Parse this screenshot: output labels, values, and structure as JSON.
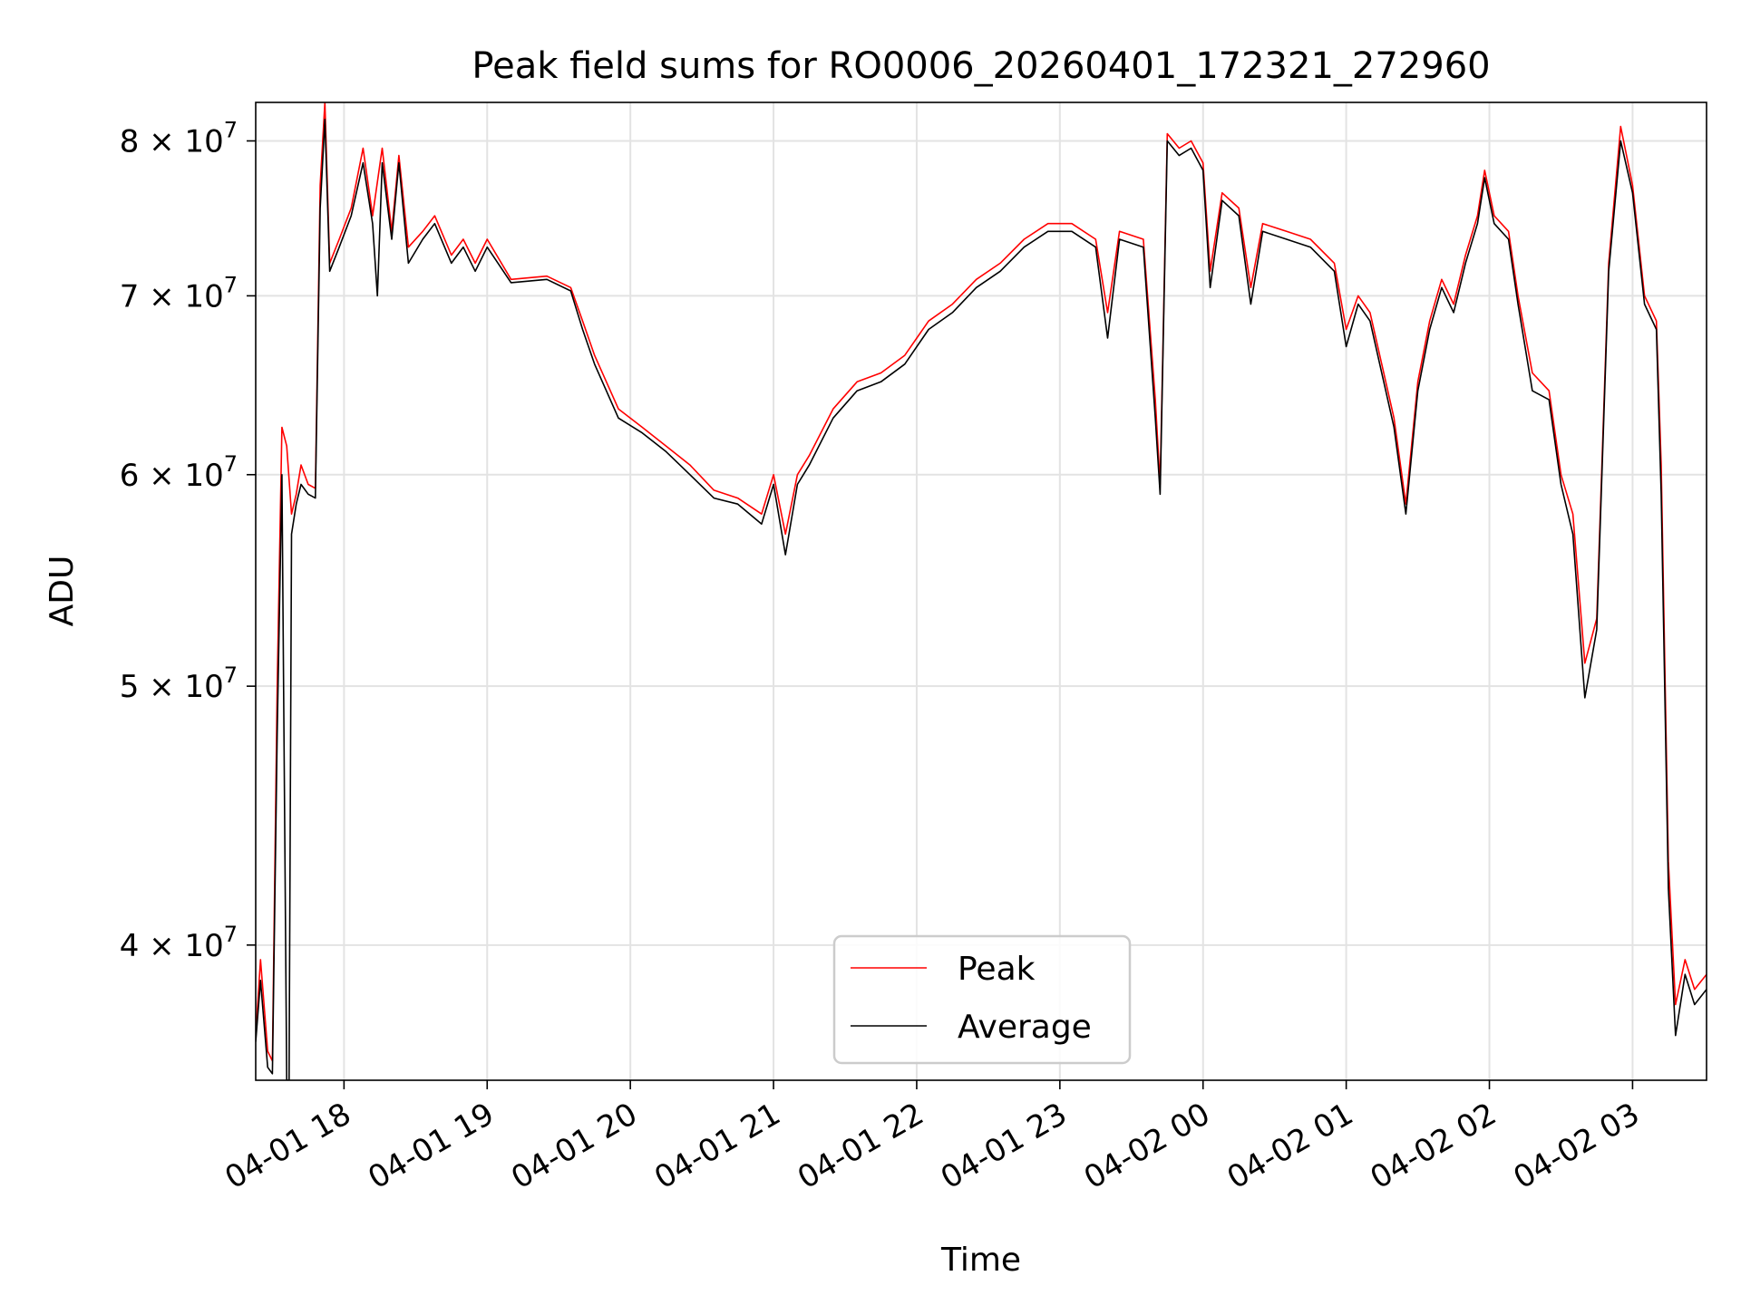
{
  "chart_data": {
    "type": "line",
    "title": "Peak field sums for RO0006_20260401_172321_272960",
    "xlabel": "Time",
    "ylabel": "ADU",
    "x_ticks": [
      "04-01 18",
      "04-01 19",
      "04-01 20",
      "04-01 21",
      "04-01 22",
      "04-01 23",
      "04-02 00",
      "04-02 01",
      "04-02 02",
      "04-02 03"
    ],
    "y_ticks": [
      {
        "value": 40000000,
        "mantissa": "4",
        "exp": "7"
      },
      {
        "value": 50000000,
        "mantissa": "5",
        "exp": "7"
      },
      {
        "value": 60000000,
        "mantissa": "6",
        "exp": "7"
      },
      {
        "value": 70000000,
        "mantissa": "7",
        "exp": "7"
      },
      {
        "value": 80000000,
        "mantissa": "8",
        "exp": "7"
      }
    ],
    "y_scale": "log",
    "xlim": [
      "04-01 17:23",
      "04-02 03:31"
    ],
    "ylim": [
      35600000,
      82700000
    ],
    "grid": true,
    "legend_position": "lower-center",
    "series": [
      {
        "name": "Peak",
        "color": "#ff0000",
        "points": [
          [
            "04-01 17:23",
            37000000
          ],
          [
            "04-01 17:25",
            39500000
          ],
          [
            "04-01 17:28",
            36500000
          ],
          [
            "04-01 17:30",
            36200000
          ],
          [
            "04-01 17:32",
            50000000
          ],
          [
            "04-01 17:34",
            62500000
          ],
          [
            "04-01 17:36",
            61500000
          ],
          [
            "04-01 17:38",
            58000000
          ],
          [
            "04-01 17:40",
            59000000
          ],
          [
            "04-01 17:42",
            60500000
          ],
          [
            "04-01 17:45",
            59500000
          ],
          [
            "04-01 17:48",
            59300000
          ],
          [
            "04-01 17:50",
            77000000
          ],
          [
            "04-01 17:52",
            82700000
          ],
          [
            "04-01 17:54",
            72000000
          ],
          [
            "04-01 17:58",
            73500000
          ],
          [
            "04-01 18:03",
            75500000
          ],
          [
            "04-01 18:08",
            79500000
          ],
          [
            "04-01 18:12",
            75000000
          ],
          [
            "04-01 18:16",
            79500000
          ],
          [
            "04-01 18:20",
            74000000
          ],
          [
            "04-01 18:23",
            79000000
          ],
          [
            "04-01 18:27",
            73000000
          ],
          [
            "04-01 18:33",
            74000000
          ],
          [
            "04-01 18:38",
            75000000
          ],
          [
            "04-01 18:45",
            72500000
          ],
          [
            "04-01 18:50",
            73500000
          ],
          [
            "04-01 18:55",
            72000000
          ],
          [
            "04-01 19:00",
            73500000
          ],
          [
            "04-01 19:10",
            71000000
          ],
          [
            "04-01 19:25",
            71200000
          ],
          [
            "04-01 19:35",
            70500000
          ],
          [
            "04-01 19:40",
            68500000
          ],
          [
            "04-01 19:45",
            66500000
          ],
          [
            "04-01 19:55",
            63500000
          ],
          [
            "04-01 20:05",
            62500000
          ],
          [
            "04-01 20:15",
            61500000
          ],
          [
            "04-01 20:25",
            60500000
          ],
          [
            "04-01 20:35",
            59200000
          ],
          [
            "04-01 20:45",
            58800000
          ],
          [
            "04-01 20:55",
            58000000
          ],
          [
            "04-01 21:00",
            60000000
          ],
          [
            "04-01 21:05",
            57000000
          ],
          [
            "04-01 21:10",
            60000000
          ],
          [
            "04-01 21:15",
            61000000
          ],
          [
            "04-01 21:25",
            63500000
          ],
          [
            "04-01 21:35",
            65000000
          ],
          [
            "04-01 21:45",
            65500000
          ],
          [
            "04-01 21:55",
            66500000
          ],
          [
            "04-01 22:05",
            68500000
          ],
          [
            "04-01 22:15",
            69500000
          ],
          [
            "04-01 22:25",
            71000000
          ],
          [
            "04-01 22:35",
            72000000
          ],
          [
            "04-01 22:45",
            73500000
          ],
          [
            "04-01 22:55",
            74500000
          ],
          [
            "04-01 23:05",
            74500000
          ],
          [
            "04-01 23:15",
            73500000
          ],
          [
            "04-01 23:20",
            69000000
          ],
          [
            "04-01 23:25",
            74000000
          ],
          [
            "04-01 23:35",
            73500000
          ],
          [
            "04-01 23:40",
            64000000
          ],
          [
            "04-01 23:42",
            59500000
          ],
          [
            "04-01 23:45",
            80500000
          ],
          [
            "04-01 23:50",
            79500000
          ],
          [
            "04-01 23:55",
            80000000
          ],
          [
            "04-02 00:00",
            78500000
          ],
          [
            "04-02 00:03",
            71500000
          ],
          [
            "04-02 00:08",
            76500000
          ],
          [
            "04-02 00:15",
            75500000
          ],
          [
            "04-02 00:20",
            70500000
          ],
          [
            "04-02 00:25",
            74500000
          ],
          [
            "04-02 00:35",
            74000000
          ],
          [
            "04-02 00:45",
            73500000
          ],
          [
            "04-02 00:55",
            72000000
          ],
          [
            "04-02 01:00",
            68000000
          ],
          [
            "04-02 01:05",
            70000000
          ],
          [
            "04-02 01:10",
            69000000
          ],
          [
            "04-02 01:20",
            63000000
          ],
          [
            "04-02 01:25",
            58500000
          ],
          [
            "04-02 01:30",
            65000000
          ],
          [
            "04-02 01:35",
            68500000
          ],
          [
            "04-02 01:40",
            71000000
          ],
          [
            "04-02 01:45",
            69500000
          ],
          [
            "04-02 01:50",
            72500000
          ],
          [
            "04-02 01:55",
            75000000
          ],
          [
            "04-02 01:58",
            78000000
          ],
          [
            "04-02 02:02",
            75000000
          ],
          [
            "04-02 02:08",
            74000000
          ],
          [
            "04-02 02:12",
            70000000
          ],
          [
            "04-02 02:18",
            65500000
          ],
          [
            "04-02 02:25",
            64500000
          ],
          [
            "04-02 02:30",
            60000000
          ],
          [
            "04-02 02:35",
            58000000
          ],
          [
            "04-02 02:40",
            51000000
          ],
          [
            "04-02 02:45",
            53000000
          ],
          [
            "04-02 02:50",
            72000000
          ],
          [
            "04-02 02:55",
            81000000
          ],
          [
            "04-02 03:00",
            77000000
          ],
          [
            "04-02 03:05",
            70000000
          ],
          [
            "04-02 03:10",
            68500000
          ],
          [
            "04-02 03:12",
            60500000
          ],
          [
            "04-02 03:15",
            43000000
          ],
          [
            "04-02 03:18",
            38000000
          ],
          [
            "04-02 03:22",
            39500000
          ],
          [
            "04-02 03:26",
            38500000
          ],
          [
            "04-02 03:31",
            39000000
          ]
        ]
      },
      {
        "name": "Average",
        "color": "#000000",
        "points": [
          [
            "04-01 17:23",
            36800000
          ],
          [
            "04-01 17:25",
            38800000
          ],
          [
            "04-01 17:28",
            36000000
          ],
          [
            "04-01 17:30",
            35800000
          ],
          [
            "04-01 17:32",
            48000000
          ],
          [
            "04-01 17:34",
            60000000
          ],
          [
            "04-01 17:36",
            35600000
          ],
          [
            "04-01 17:37",
            35600000
          ],
          [
            "04-01 17:38",
            57000000
          ],
          [
            "04-01 17:40",
            58500000
          ],
          [
            "04-01 17:42",
            59500000
          ],
          [
            "04-01 17:45",
            59000000
          ],
          [
            "04-01 17:48",
            58800000
          ],
          [
            "04-01 17:50",
            75500000
          ],
          [
            "04-01 17:52",
            81500000
          ],
          [
            "04-01 17:54",
            71500000
          ],
          [
            "04-01 17:58",
            73000000
          ],
          [
            "04-01 18:03",
            75000000
          ],
          [
            "04-01 18:08",
            78500000
          ],
          [
            "04-01 18:12",
            74500000
          ],
          [
            "04-01 18:14",
            70000000
          ],
          [
            "04-01 18:16",
            78500000
          ],
          [
            "04-01 18:20",
            73500000
          ],
          [
            "04-01 18:23",
            78500000
          ],
          [
            "04-01 18:27",
            72000000
          ],
          [
            "04-01 18:33",
            73500000
          ],
          [
            "04-01 18:38",
            74500000
          ],
          [
            "04-01 18:45",
            72000000
          ],
          [
            "04-01 18:50",
            73000000
          ],
          [
            "04-01 18:55",
            71500000
          ],
          [
            "04-01 19:00",
            73000000
          ],
          [
            "04-01 19:10",
            70800000
          ],
          [
            "04-01 19:25",
            71000000
          ],
          [
            "04-01 19:35",
            70300000
          ],
          [
            "04-01 19:40",
            68000000
          ],
          [
            "04-01 19:45",
            66000000
          ],
          [
            "04-01 19:55",
            63000000
          ],
          [
            "04-01 20:05",
            62200000
          ],
          [
            "04-01 20:15",
            61200000
          ],
          [
            "04-01 20:25",
            60000000
          ],
          [
            "04-01 20:35",
            58800000
          ],
          [
            "04-01 20:45",
            58500000
          ],
          [
            "04-01 20:55",
            57500000
          ],
          [
            "04-01 21:00",
            59500000
          ],
          [
            "04-01 21:05",
            56000000
          ],
          [
            "04-01 21:10",
            59500000
          ],
          [
            "04-01 21:15",
            60500000
          ],
          [
            "04-01 21:25",
            63000000
          ],
          [
            "04-01 21:35",
            64500000
          ],
          [
            "04-01 21:45",
            65000000
          ],
          [
            "04-01 21:55",
            66000000
          ],
          [
            "04-01 22:05",
            68000000
          ],
          [
            "04-01 22:15",
            69000000
          ],
          [
            "04-01 22:25",
            70500000
          ],
          [
            "04-01 22:35",
            71500000
          ],
          [
            "04-01 22:45",
            73000000
          ],
          [
            "04-01 22:55",
            74000000
          ],
          [
            "04-01 23:05",
            74000000
          ],
          [
            "04-01 23:15",
            73000000
          ],
          [
            "04-01 23:20",
            67500000
          ],
          [
            "04-01 23:25",
            73500000
          ],
          [
            "04-01 23:35",
            73000000
          ],
          [
            "04-01 23:40",
            63000000
          ],
          [
            "04-01 23:42",
            59000000
          ],
          [
            "04-01 23:45",
            80000000
          ],
          [
            "04-01 23:50",
            79000000
          ],
          [
            "04-01 23:55",
            79500000
          ],
          [
            "04-02 00:00",
            78000000
          ],
          [
            "04-02 00:03",
            70500000
          ],
          [
            "04-02 00:08",
            76000000
          ],
          [
            "04-02 00:15",
            75000000
          ],
          [
            "04-02 00:20",
            69500000
          ],
          [
            "04-02 00:25",
            74000000
          ],
          [
            "04-02 00:35",
            73500000
          ],
          [
            "04-02 00:45",
            73000000
          ],
          [
            "04-02 00:55",
            71500000
          ],
          [
            "04-02 01:00",
            67000000
          ],
          [
            "04-02 01:05",
            69500000
          ],
          [
            "04-02 01:10",
            68500000
          ],
          [
            "04-02 01:20",
            62500000
          ],
          [
            "04-02 01:25",
            58000000
          ],
          [
            "04-02 01:30",
            64500000
          ],
          [
            "04-02 01:35",
            68000000
          ],
          [
            "04-02 01:40",
            70500000
          ],
          [
            "04-02 01:45",
            69000000
          ],
          [
            "04-02 01:50",
            72000000
          ],
          [
            "04-02 01:55",
            74500000
          ],
          [
            "04-02 01:58",
            77500000
          ],
          [
            "04-02 02:02",
            74500000
          ],
          [
            "04-02 02:08",
            73500000
          ],
          [
            "04-02 02:12",
            69500000
          ],
          [
            "04-02 02:18",
            64500000
          ],
          [
            "04-02 02:25",
            64000000
          ],
          [
            "04-02 02:30",
            59500000
          ],
          [
            "04-02 02:35",
            57000000
          ],
          [
            "04-02 02:40",
            49500000
          ],
          [
            "04-02 02:45",
            52500000
          ],
          [
            "04-02 02:50",
            71500000
          ],
          [
            "04-02 02:55",
            80000000
          ],
          [
            "04-02 03:00",
            76500000
          ],
          [
            "04-02 03:05",
            69500000
          ],
          [
            "04-02 03:10",
            68000000
          ],
          [
            "04-02 03:12",
            59000000
          ],
          [
            "04-02 03:15",
            42000000
          ],
          [
            "04-02 03:18",
            37000000
          ],
          [
            "04-02 03:22",
            39000000
          ],
          [
            "04-02 03:26",
            38000000
          ],
          [
            "04-02 03:31",
            38500000
          ]
        ]
      }
    ]
  }
}
